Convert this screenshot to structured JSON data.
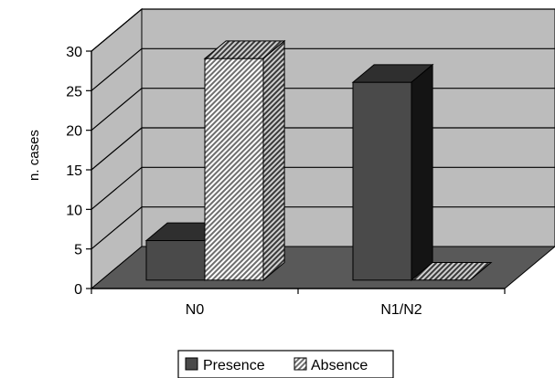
{
  "chart_data": {
    "type": "bar",
    "categories": [
      "N0",
      "N1/N2"
    ],
    "series": [
      {
        "name": "Presence",
        "values": [
          5,
          25
        ]
      },
      {
        "name": "Absence",
        "values": [
          28,
          0
        ]
      }
    ],
    "title": "",
    "xlabel": "",
    "ylabel": "n. cases",
    "ylim": [
      0,
      30
    ],
    "yticks": [
      "0",
      "5",
      "10",
      "15",
      "20",
      "25",
      "30"
    ],
    "grid": true,
    "legend_position": "bottom",
    "colors": {
      "presence": "#4a4a4a",
      "absence_pattern": "#7a7a7a",
      "wall": "#bcbcbc",
      "floor": "#595959",
      "gridline": "#000000"
    }
  }
}
